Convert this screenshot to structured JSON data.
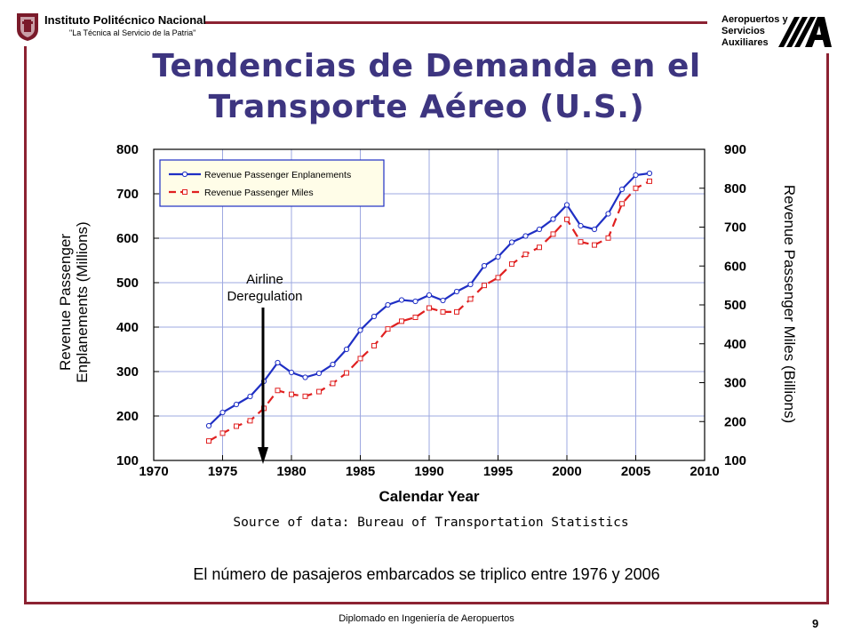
{
  "header": {
    "institution_name": "Instituto Politécnico Nacional",
    "institution_motto": "\"La Técnica al Servicio de la Patria\"",
    "org_lines": [
      "Aeropuertos y",
      "Servicios",
      "Auxiliares"
    ]
  },
  "slide": {
    "title_line1": "Tendencias de Demanda en el",
    "title_line2": "Transporte Aéreo (U.S.)",
    "source": "Source of data: Bureau of Transportation Statistics",
    "caption": "El número de pasajeros embarcados se triplico entre 1976 y 2006",
    "footer": "Diplomado en Ingeniería de Aeropuertos",
    "page_number": "9"
  },
  "colors": {
    "frame": "#8c2232",
    "title": "#3d3580",
    "grid": "#9ea8e0",
    "enplanements": "#1f2fc4",
    "miles": "#e02020"
  },
  "chart_data": {
    "type": "line",
    "xlabel": "Calendar Year",
    "ylabel_left": [
      "Revenue Passenger",
      "Enplanements (Millions)"
    ],
    "ylabel_right": "Revenue Passenger Miles (Billions)",
    "xlim": [
      1970,
      2010
    ],
    "ylim_left": [
      100,
      800
    ],
    "ylim_right": [
      100,
      900
    ],
    "x_ticks": [
      "1970",
      "1975",
      "1980",
      "1985",
      "1990",
      "1995",
      "2000",
      "2005",
      "2010"
    ],
    "y_ticks_left": [
      "100",
      "200",
      "300",
      "400",
      "500",
      "600",
      "700",
      "800"
    ],
    "y_ticks_right": [
      "100",
      "200",
      "300",
      "400",
      "500",
      "600",
      "700",
      "800",
      "900"
    ],
    "grid": true,
    "legend_position": "top-left",
    "annotation": {
      "text_line1": "Airline",
      "text_line2": "Deregulation",
      "x": 1978
    },
    "series": [
      {
        "name": "Revenue Passenger Enplanements",
        "axis": "left",
        "x": [
          1974,
          1975,
          1976,
          1977,
          1978,
          1979,
          1980,
          1981,
          1982,
          1983,
          1984,
          1985,
          1986,
          1987,
          1988,
          1989,
          1990,
          1991,
          1992,
          1993,
          1994,
          1995,
          1996,
          1997,
          1998,
          1999,
          2000,
          2001,
          2002,
          2003,
          2004,
          2005,
          2006
        ],
        "y": [
          178,
          208,
          226,
          244,
          278,
          320,
          298,
          287,
          296,
          316,
          350,
          393,
          424,
          450,
          461,
          458,
          472,
          460,
          480,
          496,
          538,
          558,
          591,
          605,
          620,
          643,
          675,
          628,
          620,
          655,
          710,
          742,
          746
        ]
      },
      {
        "name": "Revenue Passenger Miles",
        "axis": "right",
        "x": [
          1974,
          1975,
          1976,
          1977,
          1978,
          1979,
          1980,
          1981,
          1982,
          1983,
          1984,
          1985,
          1986,
          1987,
          1988,
          1989,
          1990,
          1991,
          1992,
          1993,
          1994,
          1995,
          1996,
          1997,
          1998,
          1999,
          2000,
          2001,
          2002,
          2003,
          2004,
          2005,
          2006
        ],
        "y": [
          150,
          170,
          188,
          202,
          234,
          280,
          270,
          265,
          277,
          298,
          325,
          362,
          395,
          438,
          458,
          468,
          492,
          482,
          482,
          515,
          550,
          570,
          605,
          630,
          648,
          682,
          720,
          662,
          654,
          672,
          760,
          800,
          818
        ]
      }
    ]
  }
}
